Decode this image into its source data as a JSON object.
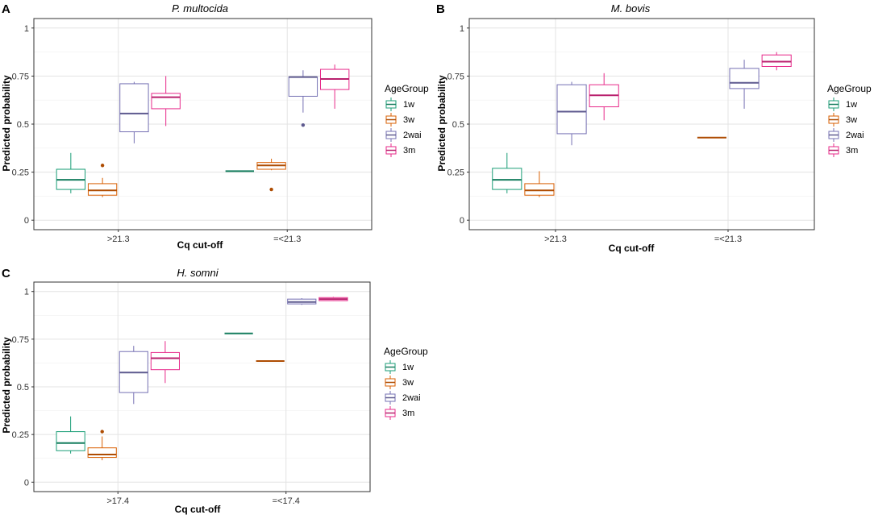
{
  "figure": {
    "panels": [
      {
        "label": "A",
        "title": "P. multocida"
      },
      {
        "label": "B",
        "title": "M. bovis"
      },
      {
        "label": "C",
        "title": "H. somni"
      }
    ],
    "legend": {
      "title": "AgeGroup",
      "entries": [
        {
          "name": "1w",
          "color": "#1b9e77"
        },
        {
          "name": "3w",
          "color": "#d95f02"
        },
        {
          "name": "2wai",
          "color": "#7570b3"
        },
        {
          "name": "3m",
          "color": "#e7298a"
        }
      ]
    }
  },
  "chart_data": [
    {
      "type": "box",
      "panel": "A",
      "title": "P. multocida",
      "xlabel": "Cq cut-off",
      "ylabel": "Predicted probability",
      "categories": [
        ">21.3",
        "=<21.3"
      ],
      "yticks": [
        0,
        0.25,
        0.5,
        0.75,
        1
      ],
      "ytick_labels": [
        "0",
        "0.25",
        "0.5",
        "0.75",
        "1"
      ],
      "ylim": [
        0,
        1
      ],
      "grid": true,
      "groups": [
        "1w",
        "3w",
        "2wai",
        "3m"
      ],
      "boxes": [
        {
          "category": ">21.3",
          "group": "1w",
          "min": 0.14,
          "q1": 0.16,
          "median": 0.21,
          "q3": 0.265,
          "max": 0.35,
          "outliers": []
        },
        {
          "category": ">21.3",
          "group": "3w",
          "min": 0.12,
          "q1": 0.13,
          "median": 0.155,
          "q3": 0.19,
          "max": 0.22,
          "outliers": [
            0.285
          ]
        },
        {
          "category": ">21.3",
          "group": "2wai",
          "min": 0.4,
          "q1": 0.46,
          "median": 0.555,
          "q3": 0.71,
          "max": 0.72,
          "outliers": []
        },
        {
          "category": ">21.3",
          "group": "3m",
          "min": 0.49,
          "q1": 0.58,
          "median": 0.64,
          "q3": 0.66,
          "max": 0.75,
          "outliers": []
        },
        {
          "category": "=<21.3",
          "group": "1w",
          "min": 0.255,
          "q1": 0.255,
          "median": 0.255,
          "q3": 0.255,
          "max": 0.255,
          "outliers": []
        },
        {
          "category": "=<21.3",
          "group": "3w",
          "min": 0.26,
          "q1": 0.265,
          "median": 0.285,
          "q3": 0.3,
          "max": 0.32,
          "outliers": [
            0.16
          ]
        },
        {
          "category": "=<21.3",
          "group": "2wai",
          "min": 0.56,
          "q1": 0.645,
          "median": 0.745,
          "q3": 0.745,
          "max": 0.78,
          "outliers": [
            0.495
          ]
        },
        {
          "category": "=<21.3",
          "group": "3m",
          "min": 0.58,
          "q1": 0.68,
          "median": 0.735,
          "q3": 0.785,
          "max": 0.81,
          "outliers": []
        }
      ]
    },
    {
      "type": "box",
      "panel": "B",
      "title": "M. bovis",
      "xlabel": "Cq cut-off",
      "ylabel": "Predicted probability",
      "categories": [
        ">21.3",
        "=<21.3"
      ],
      "yticks": [
        0,
        0.25,
        0.5,
        0.75,
        1
      ],
      "ytick_labels": [
        "0",
        "0.25",
        "0.5",
        "0.75",
        "1"
      ],
      "ylim": [
        0,
        1
      ],
      "grid": true,
      "groups": [
        "1w",
        "3w",
        "2wai",
        "3m"
      ],
      "boxes": [
        {
          "category": ">21.3",
          "group": "1w",
          "min": 0.14,
          "q1": 0.16,
          "median": 0.21,
          "q3": 0.27,
          "max": 0.35,
          "outliers": []
        },
        {
          "category": ">21.3",
          "group": "3w",
          "min": 0.12,
          "q1": 0.13,
          "median": 0.155,
          "q3": 0.19,
          "max": 0.255,
          "outliers": []
        },
        {
          "category": ">21.3",
          "group": "2wai",
          "min": 0.39,
          "q1": 0.45,
          "median": 0.565,
          "q3": 0.705,
          "max": 0.72,
          "outliers": []
        },
        {
          "category": ">21.3",
          "group": "3m",
          "min": 0.52,
          "q1": 0.59,
          "median": 0.65,
          "q3": 0.705,
          "max": 0.765,
          "outliers": []
        },
        {
          "category": "=<21.3",
          "group": "1w",
          "outliers": []
        },
        {
          "category": "=<21.3",
          "group": "3w",
          "min": 0.43,
          "q1": 0.43,
          "median": 0.43,
          "q3": 0.43,
          "max": 0.43,
          "outliers": []
        },
        {
          "category": "=<21.3",
          "group": "2wai",
          "min": 0.58,
          "q1": 0.685,
          "median": 0.715,
          "q3": 0.79,
          "max": 0.835,
          "outliers": []
        },
        {
          "category": "=<21.3",
          "group": "3m",
          "min": 0.78,
          "q1": 0.8,
          "median": 0.825,
          "q3": 0.86,
          "max": 0.875,
          "outliers": []
        }
      ]
    },
    {
      "type": "box",
      "panel": "C",
      "title": "H. somni",
      "xlabel": "Cq cut-off",
      "ylabel": "Predicted probability",
      "categories": [
        ">17.4",
        "=<17.4"
      ],
      "yticks": [
        0,
        0.25,
        0.5,
        0.75,
        1
      ],
      "ytick_labels": [
        "0",
        "0.25",
        "0.5",
        "0.75",
        "1"
      ],
      "ylim": [
        0,
        1
      ],
      "grid": true,
      "groups": [
        "1w",
        "3w",
        "2wai",
        "3m"
      ],
      "boxes": [
        {
          "category": ">17.4",
          "group": "1w",
          "min": 0.15,
          "q1": 0.165,
          "median": 0.205,
          "q3": 0.265,
          "max": 0.345,
          "outliers": []
        },
        {
          "category": ">17.4",
          "group": "3w",
          "min": 0.115,
          "q1": 0.13,
          "median": 0.145,
          "q3": 0.18,
          "max": 0.24,
          "outliers": [
            0.265
          ]
        },
        {
          "category": ">17.4",
          "group": "2wai",
          "min": 0.41,
          "q1": 0.47,
          "median": 0.575,
          "q3": 0.685,
          "max": 0.715,
          "outliers": []
        },
        {
          "category": ">17.4",
          "group": "3m",
          "min": 0.52,
          "q1": 0.59,
          "median": 0.65,
          "q3": 0.68,
          "max": 0.74,
          "outliers": []
        },
        {
          "category": "=<17.4",
          "group": "1w",
          "min": 0.78,
          "q1": 0.78,
          "median": 0.78,
          "q3": 0.78,
          "max": 0.78,
          "outliers": []
        },
        {
          "category": "=<17.4",
          "group": "3w",
          "min": 0.635,
          "q1": 0.635,
          "median": 0.635,
          "q3": 0.635,
          "max": 0.635,
          "outliers": []
        },
        {
          "category": "=<17.4",
          "group": "2wai",
          "min": 0.93,
          "q1": 0.935,
          "median": 0.945,
          "q3": 0.96,
          "max": 0.965,
          "outliers": []
        },
        {
          "category": "=<17.4",
          "group": "3m",
          "min": 0.95,
          "q1": 0.952,
          "median": 0.96,
          "q3": 0.968,
          "max": 0.972,
          "outliers": []
        }
      ]
    }
  ]
}
